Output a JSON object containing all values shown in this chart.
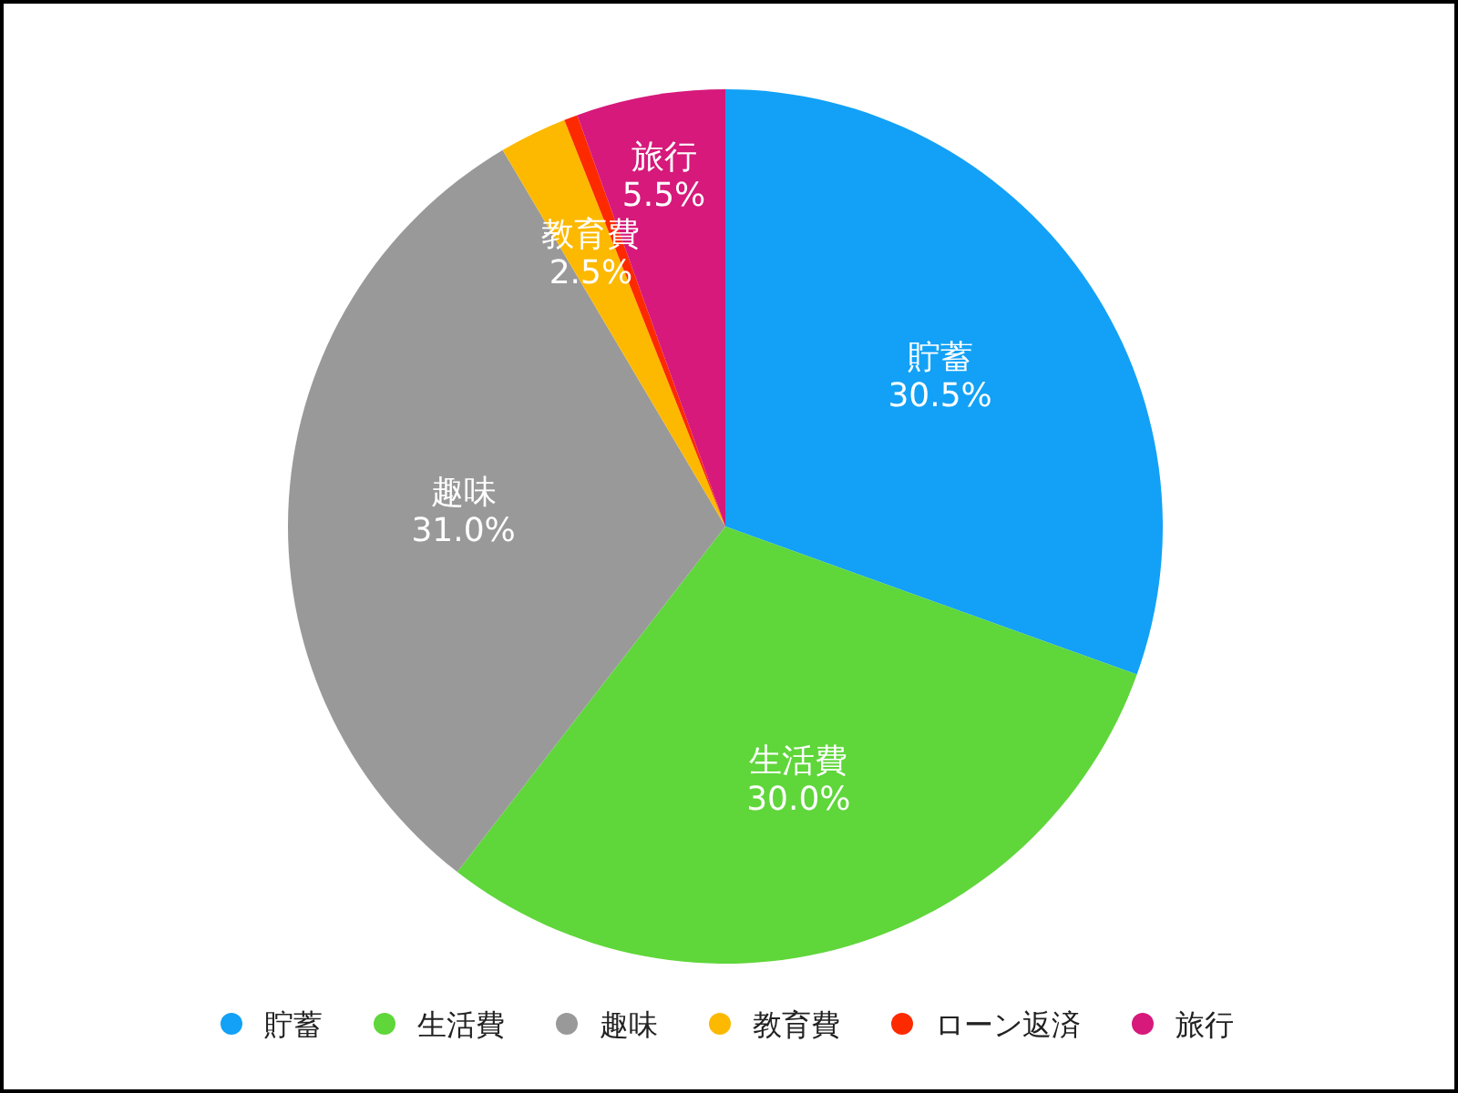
{
  "chart_data": {
    "type": "pie",
    "categories": [
      "貯蓄",
      "生活費",
      "趣味",
      "教育費",
      "ローン返済",
      "旅行"
    ],
    "values": [
      30.5,
      30.0,
      31.0,
      2.5,
      0.5,
      5.5
    ],
    "colors": [
      "#12a1f6",
      "#5fd63a",
      "#999999",
      "#fcb900",
      "#fd2a00",
      "#d6197b"
    ],
    "value_labels": [
      "30.5%",
      "30.0%",
      "31.0%",
      "2.5%",
      null,
      "5.5%"
    ],
    "legend": "bottom"
  }
}
